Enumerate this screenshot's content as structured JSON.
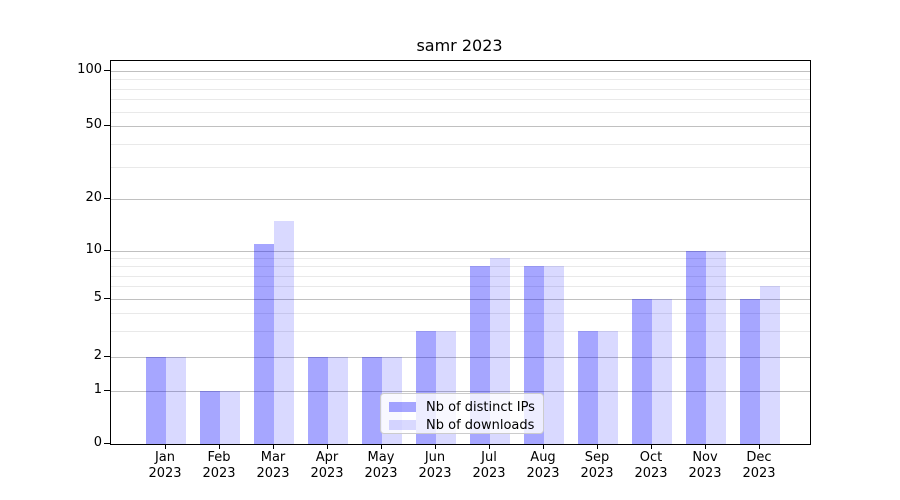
{
  "title": "samr 2023",
  "chart_data": {
    "type": "bar",
    "title": "samr 2023",
    "categories": [
      "Jan 2023",
      "Feb 2023",
      "Mar 2023",
      "Apr 2023",
      "May 2023",
      "Jun 2023",
      "Jul 2023",
      "Aug 2023",
      "Sep 2023",
      "Oct 2023",
      "Nov 2023",
      "Dec 2023"
    ],
    "series": [
      {
        "name": "Nb of distinct IPs",
        "color": "#a6a6ff",
        "color_rgba": "rgba(0,0,255,0.35)",
        "values": [
          2,
          1,
          11,
          2,
          2,
          3,
          8,
          8,
          3,
          5,
          10,
          5
        ]
      },
      {
        "name": "Nb of downloads",
        "color": "#d9d9ff",
        "color_rgba": "rgba(0,0,255,0.15)",
        "values": [
          2,
          1,
          15,
          2,
          2,
          3,
          9,
          8,
          3,
          5,
          10,
          6
        ]
      }
    ],
    "xlabel": "",
    "ylabel": "",
    "yscale": "symlog",
    "ylim": [
      0,
      115
    ],
    "yticks": [
      0,
      1,
      2,
      5,
      10,
      20,
      50,
      100
    ],
    "yticks_minor": [
      3,
      4,
      6,
      7,
      8,
      9,
      30,
      40,
      60,
      70,
      80,
      90
    ],
    "grid": "both",
    "legend_position": "lower-center-inside"
  },
  "colors": {
    "grid_major": "#c0c0c0",
    "grid_minor": "#e9e9e9",
    "spine": "#000000",
    "text": "#000000",
    "legend_bg": "rgba(255,255,255,0.8)",
    "legend_border": "#cccccc"
  }
}
